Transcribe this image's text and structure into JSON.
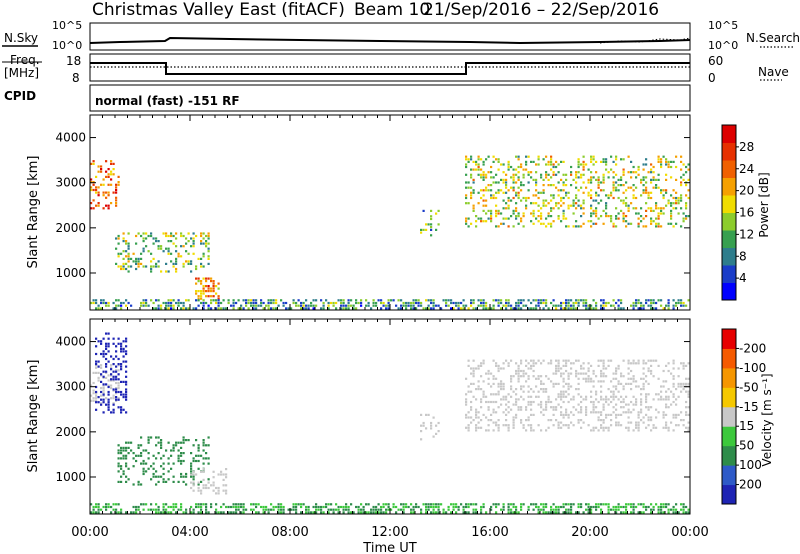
{
  "header": {
    "title": "Christmas Valley East (fitACF)",
    "beam": "Beam 10",
    "date_range": "21/Sep/2016 – 22/Sep/2016"
  },
  "status_panels": {
    "nsky_label": "N.Sky",
    "nsearch_label": "N.Search",
    "freq_label_1": "Freq.",
    "freq_label_2": "[MHz]",
    "nave_label": "Nave",
    "cpid_label": "CPID",
    "cpid_text": "normal (fast) -151 RF",
    "noise_left_ticks": [
      "10^5",
      "10^0"
    ],
    "noise_right_ticks": [
      "10^5",
      "10^0"
    ],
    "freq_ticks": [
      "18",
      "8"
    ],
    "nave_ticks": [
      "60",
      "0"
    ]
  },
  "chart_data": [
    {
      "type": "heatmap",
      "panel": "power",
      "ylabel": "Slant Range [km]",
      "xlabel": "Time UT",
      "xlim": [
        "00:00",
        "24:00"
      ],
      "ylim": [
        180,
        4500
      ],
      "x_ticks": [
        "00:00",
        "04:00",
        "08:00",
        "12:00",
        "16:00",
        "20:00",
        "00:00"
      ],
      "y_ticks": [
        1000,
        2000,
        3000,
        4000
      ],
      "colorbar": {
        "label": "Power [dB]",
        "ticks": [
          4,
          8,
          12,
          16,
          20,
          24,
          28
        ],
        "colors": [
          "#0000ff",
          "#1a3cc8",
          "#2e7d8c",
          "#37a050",
          "#8ccc2c",
          "#f0dc00",
          "#f5a000",
          "#f06000",
          "#e63000",
          "#dd0000"
        ]
      },
      "regions": [
        {
          "t": [
            0.0,
            1.2
          ],
          "r": [
            2400,
            3500
          ],
          "level": 24
        },
        {
          "t": [
            1.0,
            4.8
          ],
          "r": [
            1000,
            1900
          ],
          "level": 14
        },
        {
          "t": [
            4.2,
            5.2
          ],
          "r": [
            400,
            900
          ],
          "level": 22
        },
        {
          "t": [
            0.0,
            24.0
          ],
          "r": [
            180,
            420
          ],
          "level": 10
        },
        {
          "t": [
            13.2,
            14.0
          ],
          "r": [
            1800,
            2400
          ],
          "level": 12
        },
        {
          "t": [
            15.0,
            24.0
          ],
          "r": [
            2000,
            3600
          ],
          "level": 16
        }
      ]
    },
    {
      "type": "heatmap",
      "panel": "velocity",
      "ylabel": "Slant Range [km]",
      "xlabel": "Time UT",
      "xlim": [
        "00:00",
        "24:00"
      ],
      "ylim": [
        180,
        4500
      ],
      "x_ticks": [
        "00:00",
        "04:00",
        "08:00",
        "12:00",
        "16:00",
        "20:00",
        "00:00"
      ],
      "y_ticks": [
        1000,
        2000,
        3000,
        4000
      ],
      "colorbar": {
        "label": "Velocity [m s⁻¹]",
        "ticks": [
          "200",
          "100",
          "50",
          "15",
          "-15",
          "-50",
          "-100",
          "-200"
        ],
        "colors": [
          "#1e24b4",
          "#2e5ac8",
          "#2e8c4a",
          "#3cc83c",
          "#c8c8c8",
          "#f5c800",
          "#f59600",
          "#f55a00",
          "#e60000"
        ]
      },
      "regions": [
        {
          "t": [
            0.0,
            1.2
          ],
          "r": [
            2600,
            3500
          ],
          "velocity": 0
        },
        {
          "t": [
            0.2,
            1.5
          ],
          "r": [
            2400,
            4200
          ],
          "velocity": 200
        },
        {
          "t": [
            1.0,
            4.8
          ],
          "r": [
            800,
            1900
          ],
          "velocity": 60
        },
        {
          "t": [
            4.0,
            5.5
          ],
          "r": [
            600,
            1200
          ],
          "velocity": 0
        },
        {
          "t": [
            0.0,
            24.0
          ],
          "r": [
            180,
            420
          ],
          "velocity": 30
        },
        {
          "t": [
            13.2,
            14.0
          ],
          "r": [
            1800,
            2400
          ],
          "velocity": 0
        },
        {
          "t": [
            15.0,
            24.0
          ],
          "r": [
            2000,
            3600
          ],
          "velocity": 0
        }
      ]
    }
  ]
}
